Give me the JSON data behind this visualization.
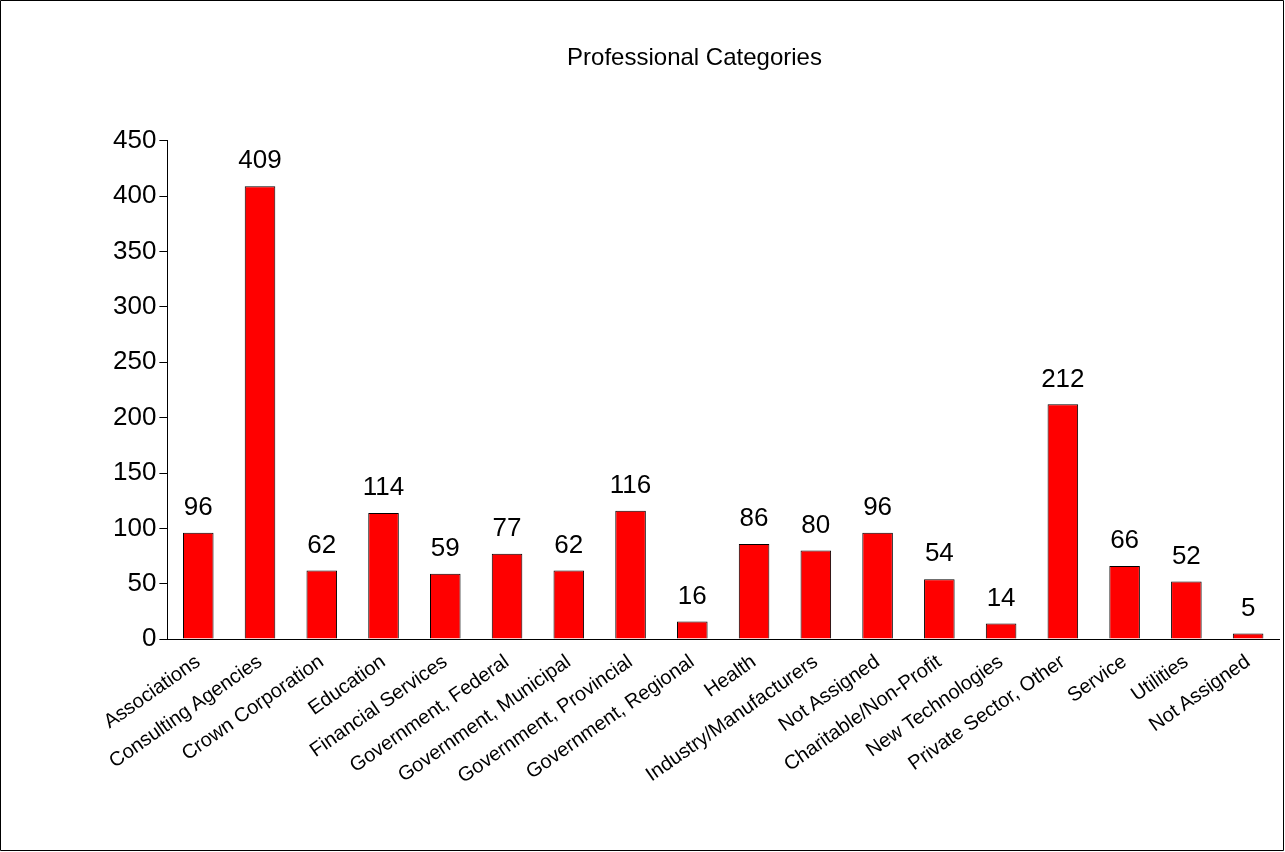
{
  "chart_data": {
    "type": "bar",
    "title": "Professional Categories",
    "categories": [
      "Associations",
      "Consulting Agencies",
      "Crown Corporation",
      "Education",
      "Financial Services",
      "Government, Federal",
      "Government, Municipal",
      "Government, Provincial",
      "Government, Regional",
      "Health",
      "Industry/Manufacturers",
      "Not Assigned",
      "Charitable/Non-Profit",
      "New Technologies",
      "Private Sector, Other",
      "Service",
      "Utilities",
      "Not Assigned"
    ],
    "values": [
      96,
      409,
      62,
      114,
      59,
      77,
      62,
      116,
      16,
      86,
      80,
      96,
      54,
      14,
      212,
      66,
      52,
      5
    ],
    "color": "#ff0000",
    "ylim": [
      0,
      450
    ],
    "yticks": [
      0,
      50,
      100,
      150,
      200,
      250,
      300,
      350,
      400,
      450
    ],
    "grid": false,
    "legend": false,
    "data_labels": true
  }
}
